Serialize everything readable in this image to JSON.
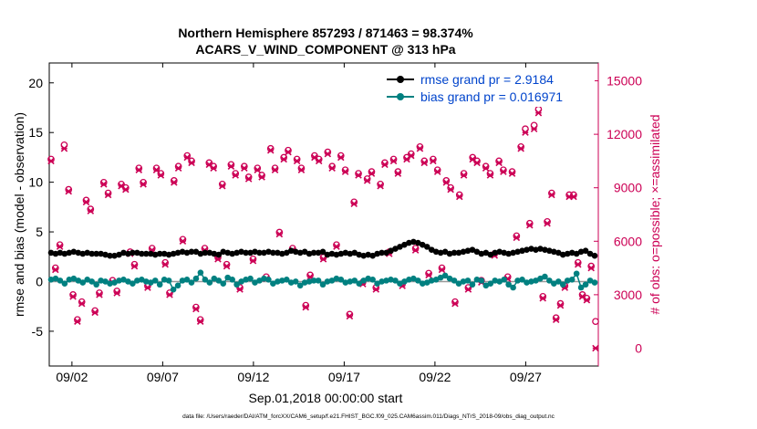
{
  "chart_data": {
    "type": "line",
    "title_line1": "Northern Hemisphere 857293 / 871463 = 98.374%",
    "title_line2": "ACARS_V_WIND_COMPONENT @ 313 hPa",
    "ylabel": "rmse and bias (model - observation)",
    "y2label": "# of obs: o=possible; ×=assimilated",
    "xlabel": "Sep.01,2018 00:00:00 start",
    "footnote": "data file: /Users/raeder/DAI/ATM_forcXX/CAM6_setup/f.e21.FHIST_BGC.f09_025.CAM6assim.011/Diags_NTrS_2018-09/obs_diag_output.nc",
    "x_ticks": [
      "09/02",
      "09/07",
      "09/12",
      "09/17",
      "09/22",
      "09/27"
    ],
    "x_tick_days": [
      2,
      7,
      12,
      17,
      22,
      27
    ],
    "xlim": [
      0.75,
      31.0
    ],
    "y_ticks": [
      -5,
      0,
      5,
      10,
      15,
      20
    ],
    "ylim": [
      -8.5,
      22
    ],
    "y2_ticks": [
      0,
      3000,
      6000,
      9000,
      12000,
      15000
    ],
    "y2lim": [
      -1000,
      16000
    ],
    "grid": false,
    "legend_position": "top-right",
    "series": [
      {
        "name": "rmse grand pr = 2.9184",
        "color": "#000000",
        "axis": "left",
        "values": [
          2.9,
          2.8,
          2.9,
          2.8,
          2.9,
          3.0,
          2.9,
          2.8,
          2.9,
          2.8,
          2.8,
          2.8,
          2.7,
          2.6,
          2.6,
          2.7,
          2.9,
          2.8,
          2.9,
          2.9,
          2.8,
          2.8,
          2.8,
          2.7,
          2.8,
          2.8,
          2.7,
          2.8,
          2.9,
          3.0,
          2.9,
          3.0,
          3.0,
          2.8,
          2.9,
          2.9,
          2.8,
          2.7,
          3.0,
          2.9,
          2.8,
          2.9,
          3.0,
          2.9,
          2.9,
          3.0,
          2.9,
          2.9,
          3.0,
          2.9,
          2.9,
          2.8,
          2.9,
          3.1,
          3.0,
          2.9,
          3.0,
          2.8,
          2.9,
          2.9,
          3.0,
          2.7,
          2.8,
          2.7,
          2.8,
          2.9,
          2.8,
          2.9,
          2.7,
          2.6,
          2.7,
          2.6,
          2.8,
          2.9,
          2.9,
          3.1,
          3.3,
          3.5,
          3.7,
          3.9,
          4.0,
          3.9,
          3.7,
          3.5,
          3.2,
          3.0,
          2.9,
          3.0,
          2.8,
          2.9,
          2.9,
          3.0,
          3.1,
          3.2,
          3.0,
          2.8,
          2.9,
          2.7,
          2.9,
          3.0,
          2.9,
          2.8,
          2.9,
          3.0,
          3.1,
          3.2,
          3.3,
          3.2,
          3.3,
          3.2,
          3.1,
          3.0,
          2.9,
          2.7,
          2.8,
          2.9,
          2.8,
          3.0,
          3.1,
          2.8,
          2.6
        ]
      },
      {
        "name": "bias grand pr = 0.016971",
        "color": "#008080",
        "axis": "left",
        "values": [
          0.2,
          0.3,
          0.1,
          -0.2,
          0.2,
          0.3,
          0.1,
          -0.1,
          0.2,
          0.0,
          -0.3,
          0.1,
          0.0,
          -0.2,
          -0.1,
          0.1,
          0.2,
          0.0,
          -0.2,
          0.1,
          0.2,
          0.0,
          -0.1,
          0.1,
          -0.3,
          0.2,
          0.1,
          -0.8,
          -0.4,
          0.1,
          0.2,
          -0.1,
          0.3,
          0.9,
          0.2,
          -0.1,
          0.3,
          0.1,
          -0.2,
          0.4,
          0.2,
          -0.3,
          0.0,
          0.2,
          0.3,
          -0.1,
          0.1,
          0.3,
          0.2,
          -0.2,
          0.0,
          0.1,
          0.2,
          -0.1,
          0.0,
          -0.4,
          -0.1,
          0.0,
          0.1,
          0.1,
          -0.3,
          0.0,
          0.1,
          0.3,
          0.2,
          -0.1,
          0.0,
          0.1,
          -0.2,
          0.1,
          0.3,
          0.2,
          -0.2,
          0.0,
          0.1,
          0.2,
          0.1,
          -0.2,
          0.0,
          0.2,
          0.3,
          0.1,
          -0.2,
          -0.1,
          0.1,
          0.2,
          0.4,
          0.6,
          0.3,
          0.1,
          -0.2,
          0.0,
          0.1,
          -0.3,
          0.2,
          0.1,
          -0.4,
          -0.2,
          0.1,
          0.0,
          0.2,
          -0.3,
          -0.6,
          0.1,
          0.2,
          -0.1,
          0.0,
          0.1,
          0.3,
          0.5,
          0.1,
          -0.2,
          0.0,
          -0.3,
          0.1,
          0.2,
          0.8,
          -0.6,
          -0.3,
          0.1,
          -0.1
        ]
      },
      {
        "name": "obs possible",
        "color": "#cc0055",
        "axis": "right",
        "values": [
          10600,
          4500,
          5800,
          11400,
          8900,
          3000,
          1600,
          2600,
          8300,
          7800,
          2100,
          3100,
          9300,
          8700,
          3800,
          3200,
          9200,
          9000,
          5400,
          4700,
          10100,
          9300,
          3500,
          5600,
          10100,
          9800,
          4800,
          3100,
          9400,
          10200,
          6100,
          10800,
          10500,
          2300,
          1600,
          5600,
          10400,
          10200,
          5100,
          9200,
          4700,
          10300,
          9800,
          3400,
          10200,
          9600,
          5000,
          10100,
          9700,
          4000,
          11200,
          10100,
          6500,
          10700,
          11100,
          5600,
          10600,
          10100,
          2400,
          4100,
          10800,
          10600,
          5100,
          11000,
          10200,
          5800,
          10800,
          10000,
          1900,
          8200,
          9800,
          3700,
          9500,
          9900,
          3400,
          9200,
          10400,
          5400,
          10600,
          9900,
          3600,
          10700,
          10900,
          5600,
          11300,
          10500,
          4200,
          10600,
          10000,
          4500,
          9400,
          9000,
          2600,
          8600,
          9800,
          3400,
          10700,
          10500,
          3800,
          10200,
          9800,
          5300,
          10500,
          10000,
          4000,
          9900,
          6300,
          11300,
          12300,
          7000,
          12500,
          13400,
          2900,
          7100,
          8700,
          1700,
          2500,
          3500,
          8600,
          8600,
          4800,
          3000,
          2800,
          4600,
          1500
        ]
      },
      {
        "name": "obs assimilated",
        "color": "#cc0055",
        "axis": "right",
        "values": [
          10500,
          4400,
          5700,
          11200,
          8800,
          2900,
          1500,
          2500,
          8200,
          7700,
          2000,
          3000,
          9200,
          8600,
          3700,
          3100,
          9100,
          8900,
          5300,
          4600,
          10000,
          9200,
          3400,
          5500,
          10000,
          9700,
          4700,
          3000,
          9300,
          10100,
          6000,
          10700,
          10400,
          2200,
          1500,
          5500,
          10300,
          10100,
          5000,
          9100,
          4600,
          10200,
          9700,
          3300,
          10100,
          9500,
          4900,
          10000,
          9600,
          3900,
          11100,
          10000,
          6400,
          10600,
          11000,
          5500,
          10500,
          10000,
          2300,
          4000,
          10700,
          10500,
          5000,
          10900,
          10100,
          5700,
          10700,
          9900,
          1800,
          8100,
          9700,
          3600,
          9400,
          9800,
          3300,
          9100,
          10300,
          5300,
          10500,
          9800,
          3500,
          10600,
          10800,
          5500,
          11200,
          10400,
          4100,
          10500,
          9900,
          4400,
          9300,
          8900,
          2500,
          8500,
          9700,
          3300,
          10600,
          10400,
          3700,
          10100,
          9700,
          5200,
          10400,
          9900,
          3900,
          9800,
          6200,
          11200,
          12100,
          6900,
          12300,
          13200,
          2800,
          7000,
          8600,
          1600,
          2400,
          3400,
          8500,
          8500,
          4700,
          2900,
          2700,
          4500,
          0
        ]
      }
    ]
  }
}
